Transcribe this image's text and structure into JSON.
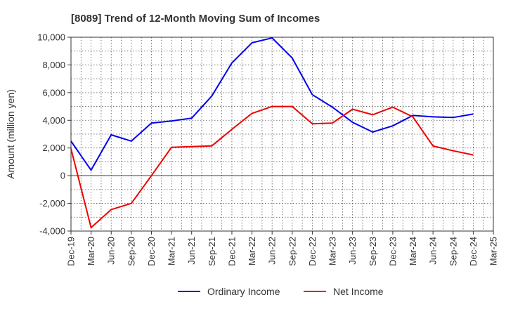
{
  "chart_data": {
    "type": "line",
    "title": "[8089]  Trend of 12-Month Moving Sum of Incomes",
    "xlabel": "",
    "ylabel": "Amount (million yen)",
    "ylim": [
      -4000,
      10000
    ],
    "yticks": [
      -4000,
      -2000,
      0,
      2000,
      4000,
      6000,
      8000,
      10000
    ],
    "ytick_labels": [
      "-4,000",
      "-2,000",
      "0",
      "2,000",
      "4,000",
      "6,000",
      "8,000",
      "10,000"
    ],
    "categories": [
      "Dec-19",
      "Mar-20",
      "Jun-20",
      "Sep-20",
      "Dec-20",
      "Mar-21",
      "Jun-21",
      "Sep-21",
      "Dec-21",
      "Mar-22",
      "Jun-22",
      "Sep-22",
      "Dec-22",
      "Mar-23",
      "Jun-23",
      "Sep-23",
      "Dec-23",
      "Mar-24",
      "Jun-24",
      "Sep-24",
      "Dec-24",
      "Mar-25"
    ],
    "grid": true,
    "legend_position": "bottom",
    "series": [
      {
        "name": "Ordinary Income",
        "color": "#0000ee",
        "values": [
          2500,
          400,
          2950,
          2500,
          3800,
          3950,
          4150,
          5750,
          8150,
          9600,
          9950,
          8500,
          5850,
          4950,
          3850,
          3150,
          3600,
          4350,
          4250,
          4200,
          4450,
          null
        ]
      },
      {
        "name": "Net Income",
        "color": "#ee0000",
        "values": [
          1950,
          -3750,
          -2450,
          -2000,
          0,
          2050,
          2100,
          2150,
          3350,
          4500,
          5000,
          5000,
          3750,
          3800,
          4800,
          4400,
          4950,
          4250,
          2150,
          1800,
          1500,
          null
        ]
      }
    ]
  }
}
